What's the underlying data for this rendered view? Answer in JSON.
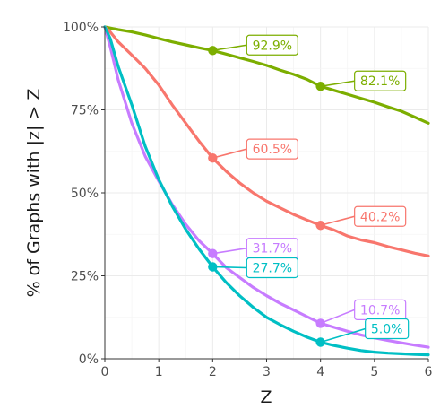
{
  "chart_data": {
    "type": "line",
    "title": "",
    "xlabel": "Z",
    "ylabel": "% of Graphs with |z| > Z",
    "xlim": [
      0,
      6
    ],
    "ylim": [
      0,
      100
    ],
    "x_ticks": [
      "0",
      "1",
      "2",
      "3",
      "4",
      "5",
      "6"
    ],
    "y_ticks": [
      "0%",
      "25%",
      "50%",
      "75%",
      "100%"
    ],
    "grid": true,
    "legend": "none",
    "series": [
      {
        "color": "#7cae00",
        "points": [
          [
            0,
            100
          ],
          [
            0.25,
            99.2
          ],
          [
            0.5,
            98.5
          ],
          [
            0.75,
            97.6
          ],
          [
            1,
            96.5
          ],
          [
            1.25,
            95.5
          ],
          [
            1.5,
            94.6
          ],
          [
            1.75,
            93.7
          ],
          [
            2,
            92.9
          ],
          [
            2.25,
            91.8
          ],
          [
            2.5,
            90.7
          ],
          [
            2.75,
            89.6
          ],
          [
            3,
            88.4
          ],
          [
            3.25,
            87.0
          ],
          [
            3.5,
            85.7
          ],
          [
            3.75,
            84.2
          ],
          [
            4,
            82.1
          ],
          [
            4.25,
            80.9
          ],
          [
            4.5,
            79.7
          ],
          [
            4.75,
            78.5
          ],
          [
            5,
            77.3
          ],
          [
            5.25,
            75.9
          ],
          [
            5.5,
            74.6
          ],
          [
            5.75,
            72.8
          ],
          [
            6,
            71.0
          ]
        ],
        "callouts": [
          {
            "x": 2,
            "y": 92.9,
            "label": "92.9%"
          },
          {
            "x": 4,
            "y": 82.1,
            "label": "82.1%"
          }
        ]
      },
      {
        "color": "#f8766d",
        "points": [
          [
            0,
            100
          ],
          [
            0.1,
            98.5
          ],
          [
            0.25,
            95.5
          ],
          [
            0.5,
            91.5
          ],
          [
            0.75,
            87.5
          ],
          [
            1,
            82.5
          ],
          [
            1.25,
            76.5
          ],
          [
            1.5,
            71.0
          ],
          [
            1.75,
            65.5
          ],
          [
            2,
            60.5
          ],
          [
            2.25,
            56.5
          ],
          [
            2.5,
            53.0
          ],
          [
            2.75,
            50.0
          ],
          [
            3,
            47.5
          ],
          [
            3.25,
            45.5
          ],
          [
            3.5,
            43.5
          ],
          [
            3.75,
            41.8
          ],
          [
            4,
            40.2
          ],
          [
            4.25,
            38.8
          ],
          [
            4.5,
            37.0
          ],
          [
            4.75,
            35.8
          ],
          [
            5,
            35.0
          ],
          [
            5.25,
            33.8
          ],
          [
            5.5,
            32.8
          ],
          [
            5.75,
            31.8
          ],
          [
            6,
            31.0
          ]
        ],
        "callouts": [
          {
            "x": 2,
            "y": 60.5,
            "label": "60.5%"
          },
          {
            "x": 4,
            "y": 40.2,
            "label": "40.2%"
          }
        ]
      },
      {
        "color": "#c77cff",
        "points": [
          [
            0,
            100
          ],
          [
            0.1,
            94.0
          ],
          [
            0.25,
            84.0
          ],
          [
            0.5,
            71.0
          ],
          [
            0.75,
            61.0
          ],
          [
            1,
            53.5
          ],
          [
            1.25,
            46.5
          ],
          [
            1.5,
            40.5
          ],
          [
            1.75,
            35.5
          ],
          [
            2,
            31.7
          ],
          [
            2.25,
            27.5
          ],
          [
            2.5,
            24.5
          ],
          [
            2.75,
            21.5
          ],
          [
            3,
            19.0
          ],
          [
            3.25,
            16.7
          ],
          [
            3.5,
            14.7
          ],
          [
            3.75,
            12.7
          ],
          [
            4,
            10.7
          ],
          [
            4.25,
            9.5
          ],
          [
            4.5,
            8.3
          ],
          [
            4.75,
            7.2
          ],
          [
            5,
            6.3
          ],
          [
            5.25,
            5.5
          ],
          [
            5.5,
            4.8
          ],
          [
            5.75,
            4.1
          ],
          [
            6,
            3.5
          ]
        ],
        "callouts": [
          {
            "x": 2,
            "y": 31.7,
            "label": "31.7%"
          },
          {
            "x": 4,
            "y": 10.7,
            "label": "10.7%"
          }
        ]
      },
      {
        "color": "#00bfc4",
        "points": [
          [
            0,
            100
          ],
          [
            0.1,
            96.5
          ],
          [
            0.25,
            88.0
          ],
          [
            0.5,
            76.5
          ],
          [
            0.75,
            64.0
          ],
          [
            1,
            54.0
          ],
          [
            1.25,
            46.0
          ],
          [
            1.5,
            39.0
          ],
          [
            1.75,
            33.0
          ],
          [
            2,
            27.7
          ],
          [
            2.25,
            23.0
          ],
          [
            2.5,
            19.0
          ],
          [
            2.75,
            15.5
          ],
          [
            3,
            12.5
          ],
          [
            3.25,
            10.3
          ],
          [
            3.5,
            8.3
          ],
          [
            3.75,
            6.5
          ],
          [
            4,
            5.0
          ],
          [
            4.25,
            4.0
          ],
          [
            4.5,
            3.2
          ],
          [
            4.75,
            2.5
          ],
          [
            5,
            2.0
          ],
          [
            5.25,
            1.7
          ],
          [
            5.5,
            1.5
          ],
          [
            5.75,
            1.3
          ],
          [
            6,
            1.2
          ]
        ],
        "callouts": [
          {
            "x": 2,
            "y": 27.7,
            "label": "27.7%"
          },
          {
            "x": 4,
            "y": 5.0,
            "label": "5.0%"
          }
        ]
      }
    ]
  }
}
